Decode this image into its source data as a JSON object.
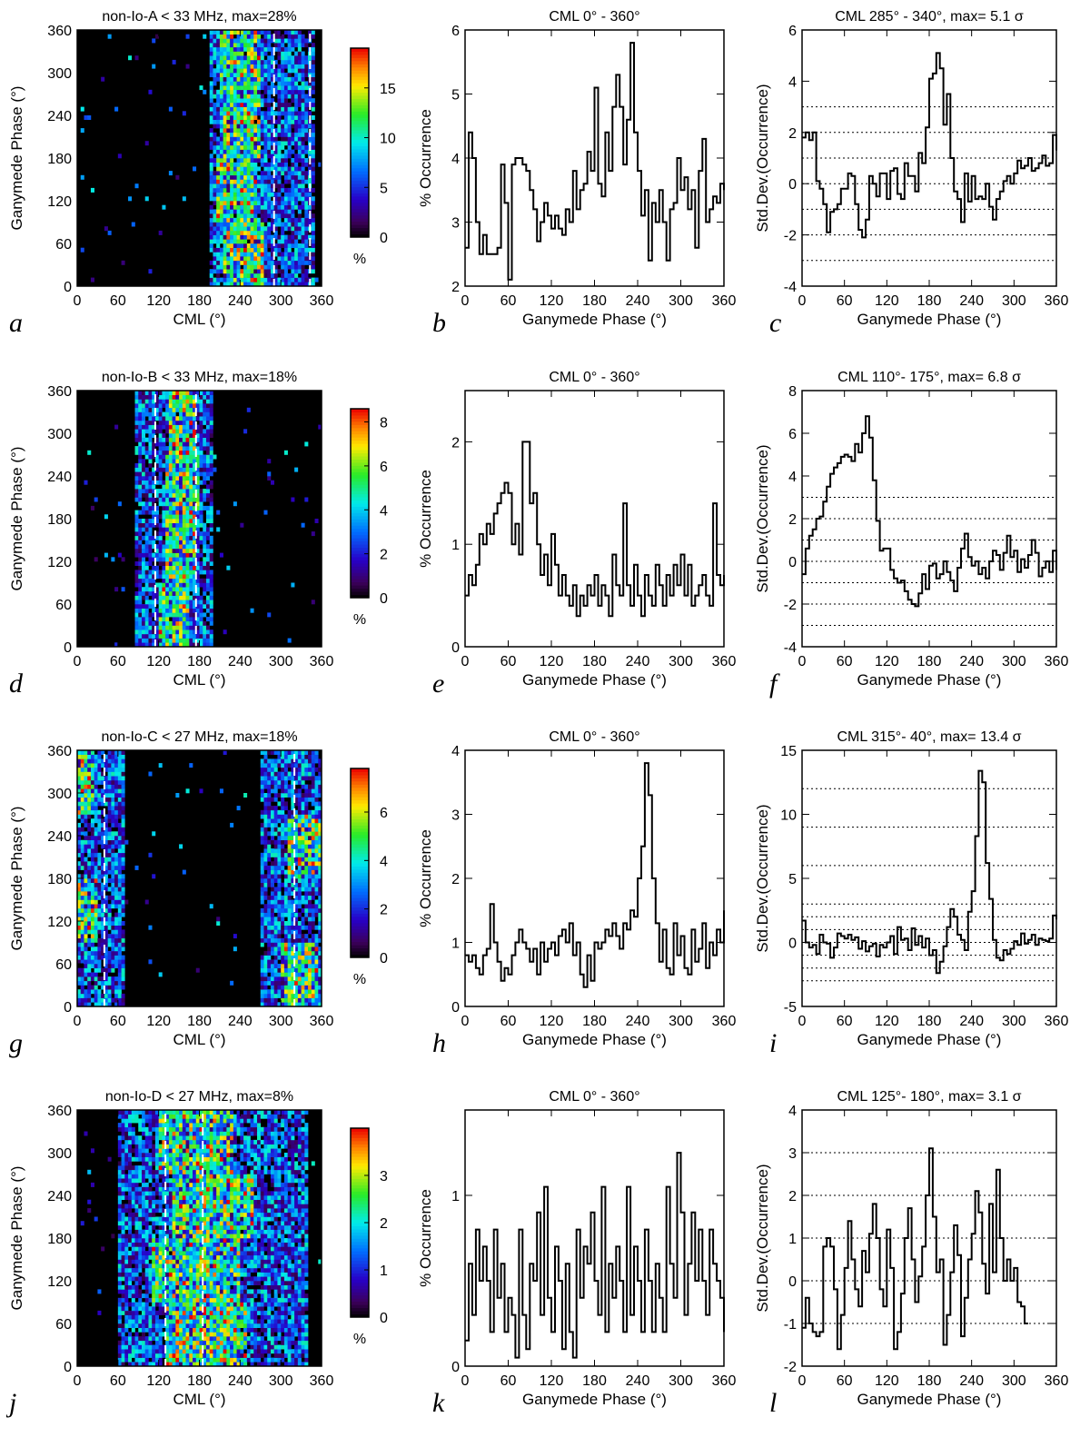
{
  "figure": {
    "rows": [
      {
        "heatmap": {
          "letter": "a",
          "title": "non-Io-A < 33 MHz, max=28%",
          "cbar_ticks": [
            "0",
            "5",
            "10",
            "15"
          ],
          "cbar_max": 19,
          "cbar_unit": "%",
          "band": [
            195,
            352
          ],
          "hot": [
            [
              215,
              275
            ],
            [
              205,
              265
            ],
            [
              215,
              270
            ],
            [
              210,
              270
            ]
          ],
          "dashed_cml": [
            290,
            343
          ]
        },
        "profile": {
          "letter": "b",
          "title": "CML 0° - 360°",
          "ylim": [
            2,
            6
          ],
          "yticks": [
            "2",
            "3",
            "4",
            "5",
            "6"
          ]
        },
        "stddev": {
          "letter": "c",
          "title": "CML 285° - 340°, max= 5.1 σ",
          "ylim": [
            -4,
            6
          ],
          "yticks": [
            "-4",
            "-2",
            "0",
            "2",
            "4",
            "6"
          ],
          "dotted": [
            -3,
            -2,
            -1,
            0,
            1,
            2,
            3
          ]
        }
      },
      {
        "heatmap": {
          "letter": "d",
          "title": "non-Io-B < 33 MHz, max=18%",
          "cbar_ticks": [
            "0",
            "2",
            "4",
            "6",
            "8"
          ],
          "cbar_max": 8.6,
          "cbar_unit": "%",
          "band": [
            85,
            200
          ],
          "hot": [
            [
              120,
              165
            ],
            [
              130,
              175
            ],
            [
              130,
              180
            ],
            [
              135,
              175
            ]
          ],
          "dashed_cml": [
            115,
            175
          ]
        },
        "profile": {
          "letter": "e",
          "title": "CML 0° - 360°",
          "ylim": [
            0,
            2.5
          ],
          "yticks": [
            "0",
            "1",
            "2"
          ]
        },
        "stddev": {
          "letter": "f",
          "title": "CML 110°- 175°, max= 6.8 σ",
          "ylim": [
            -4,
            8
          ],
          "yticks": [
            "-4",
            "-2",
            "0",
            "2",
            "4",
            "6",
            "8"
          ],
          "dotted": [
            -3,
            -2,
            -1,
            0,
            1,
            2,
            3
          ]
        }
      },
      {
        "heatmap": {
          "letter": "g",
          "title": "non-Io-C < 27 MHz, max=18%",
          "cbar_ticks": [
            "0",
            "2",
            "4",
            "6"
          ],
          "cbar_max": 7.8,
          "cbar_unit": "%",
          "band": [
            270,
            360
          ],
          "band2": [
            0,
            70
          ],
          "hot": [
            [
              300,
              355
            ],
            [
              0,
              30
            ],
            [
              310,
              360
            ],
            [
              0,
              25
            ]
          ],
          "dashed_cml": [
            40,
            320
          ]
        },
        "profile": {
          "letter": "h",
          "title": "CML 0° - 360°",
          "ylim": [
            0,
            4
          ],
          "yticks": [
            "0",
            "1",
            "2",
            "3",
            "4"
          ]
        },
        "stddev": {
          "letter": "i",
          "title": "CML 315°- 40°, max= 13.4 σ",
          "ylim": [
            -5,
            15
          ],
          "yticks": [
            "-5",
            "0",
            "5",
            "10",
            "15"
          ],
          "dotted": [
            -3,
            -2,
            -1,
            0,
            1,
            2,
            3,
            6,
            9,
            12
          ]
        }
      },
      {
        "heatmap": {
          "letter": "j",
          "title": "non-Io-D < 27 MHz, max=8%",
          "cbar_ticks": [
            "0",
            "1",
            "2",
            "3"
          ],
          "cbar_max": 4.0,
          "cbar_unit": "%",
          "band": [
            60,
            340
          ],
          "hot": [
            [
              130,
              250
            ],
            [
              110,
              240
            ],
            [
              140,
              260
            ],
            [
              120,
              230
            ]
          ],
          "dashed_cml": [
            130,
            185
          ]
        },
        "profile": {
          "letter": "k",
          "title": "CML 0° - 360°",
          "ylim": [
            0,
            1.5
          ],
          "yticks": [
            "0",
            "1"
          ]
        },
        "stddev": {
          "letter": "l",
          "title": "CML 125°- 180°, max= 3.1 σ",
          "ylim": [
            -2,
            4
          ],
          "yticks": [
            "-2",
            "-1",
            "0",
            "1",
            "2",
            "3",
            "4"
          ],
          "dotted": [
            -1,
            0,
            1,
            2,
            3
          ]
        }
      }
    ],
    "common": {
      "x_ticks": [
        "0",
        "60",
        "120",
        "180",
        "240",
        "300",
        "360"
      ],
      "heatmap_xlabel": "CML (°)",
      "heatmap_ylabel": "Ganymede Phase (°)",
      "profile_xlabel": "Ganymede Phase (°)",
      "profile_ylabel": "% Occurrence",
      "stddev_ylabel": "Std.Dev.(Occurrence)"
    }
  },
  "chart_data": [
    {
      "type": "heatmap",
      "panel": "a",
      "title": "non-Io-A < 33 MHz, max=28%",
      "xlabel": "CML (°)",
      "ylabel": "Ganymede Phase (°)",
      "xlim": [
        0,
        360
      ],
      "ylim": [
        0,
        360
      ],
      "colorbar_max": 19,
      "dashed_lines_cml": [
        290,
        343
      ]
    },
    {
      "type": "line",
      "panel": "b",
      "title": "CML 0° - 360°",
      "xlabel": "Ganymede Phase (°)",
      "ylabel": "% Occurrence",
      "xlim": [
        0,
        360
      ],
      "ylim": [
        2,
        6
      ],
      "x_start": 0,
      "x_step": 5,
      "values": [
        2.6,
        4.4,
        4.0,
        3.0,
        2.5,
        2.8,
        2.5,
        2.5,
        2.5,
        2.6,
        3.9,
        3.3,
        2.1,
        3.9,
        4.0,
        4.0,
        3.9,
        3.8,
        3.5,
        3.2,
        2.7,
        3.0,
        3.3,
        3.1,
        2.9,
        3.1,
        2.9,
        2.8,
        3.2,
        3.0,
        3.8,
        3.2,
        3.5,
        3.6,
        4.1,
        3.8,
        5.1,
        3.6,
        3.4,
        4.4,
        3.8,
        4.8,
        5.3,
        4.8,
        3.9,
        4.6,
        5.8,
        4.4,
        3.8,
        3.1,
        3.5,
        2.4,
        3.3,
        3.0,
        3.5,
        3.0,
        2.4,
        3.2,
        3.3,
        4.0,
        3.5,
        3.7,
        3.2,
        3.5,
        2.6,
        3.8,
        4.3,
        3.0,
        3.2,
        3.4,
        3.3,
        3.6,
        3.5
      ]
    },
    {
      "type": "line",
      "panel": "c",
      "title": "CML 285° - 340°, max= 5.1 σ",
      "xlabel": "Ganymede Phase (°)",
      "ylabel": "Std.Dev.(Occurrence)",
      "xlim": [
        0,
        360
      ],
      "ylim": [
        -4,
        6
      ],
      "x_start": 0,
      "x_step": 5,
      "values": [
        1.8,
        2.0,
        1.7,
        2.0,
        0.1,
        -0.2,
        -0.8,
        -1.9,
        -1.1,
        -1.0,
        -0.8,
        -0.2,
        -0.2,
        0.4,
        0.3,
        -0.8,
        -1.8,
        -2.1,
        -1.4,
        0.3,
        0.0,
        -0.5,
        0.4,
        0.4,
        -0.6,
        0.5,
        0.6,
        -0.4,
        -0.6,
        0.8,
        0.3,
        0.3,
        -0.3,
        1.2,
        0.8,
        2.2,
        4.1,
        4.3,
        5.1,
        4.5,
        2.3,
        3.5,
        1.0,
        -0.3,
        -0.6,
        -1.5,
        0.4,
        -0.7,
        0.3,
        -0.6,
        -0.5,
        -0.6,
        0.0,
        -0.9,
        -1.4,
        -0.6,
        -0.3,
        0.1,
        0.3,
        0.0,
        0.4,
        0.9,
        0.6,
        0.7,
        1.0,
        0.5,
        0.6,
        0.8,
        1.1,
        0.7,
        0.8,
        1.9,
        1.3
      ]
    },
    {
      "type": "heatmap",
      "panel": "d",
      "title": "non-Io-B < 33 MHz, max=18%",
      "xlabel": "CML (°)",
      "ylabel": "Ganymede Phase (°)",
      "xlim": [
        0,
        360
      ],
      "ylim": [
        0,
        360
      ],
      "colorbar_max": 8.6,
      "dashed_lines_cml": [
        115,
        175
      ]
    },
    {
      "type": "line",
      "panel": "e",
      "title": "CML 0° - 360°",
      "xlabel": "Ganymede Phase (°)",
      "ylabel": "% Occurrence",
      "xlim": [
        0,
        360
      ],
      "ylim": [
        0,
        2.5
      ],
      "x_start": 0,
      "x_step": 5,
      "values": [
        0.5,
        0.7,
        0.6,
        0.8,
        1.1,
        1.0,
        1.2,
        1.1,
        1.3,
        1.4,
        1.5,
        1.6,
        1.5,
        1.0,
        1.2,
        0.9,
        2.0,
        2.0,
        1.4,
        1.5,
        1.0,
        0.7,
        0.9,
        0.6,
        1.1,
        0.8,
        0.5,
        0.7,
        0.5,
        0.4,
        0.6,
        0.3,
        0.5,
        0.4,
        0.6,
        0.5,
        0.7,
        0.4,
        0.6,
        0.5,
        0.3,
        0.9,
        0.6,
        0.5,
        1.4,
        0.6,
        0.4,
        0.8,
        0.5,
        0.3,
        0.7,
        0.5,
        0.4,
        0.8,
        0.6,
        0.4,
        0.7,
        0.5,
        0.8,
        0.6,
        0.9,
        0.5,
        0.8,
        0.4,
        0.5,
        0.6,
        0.7,
        0.5,
        0.4,
        1.4,
        0.7,
        0.6,
        0.7
      ]
    },
    {
      "type": "line",
      "panel": "f",
      "title": "CML 110°- 175°, max= 6.8 σ",
      "xlabel": "Ganymede Phase (°)",
      "ylabel": "Std.Dev.(Occurrence)",
      "xlim": [
        0,
        360
      ],
      "ylim": [
        -4,
        8
      ],
      "x_start": 0,
      "x_step": 5,
      "values": [
        -0.6,
        0.6,
        1.2,
        1.5,
        2.0,
        2.1,
        2.8,
        3.5,
        4.1,
        4.4,
        4.6,
        4.9,
        5.0,
        4.9,
        4.7,
        5.5,
        5.1,
        6.0,
        6.8,
        5.8,
        3.8,
        1.9,
        0.5,
        0.6,
        0.6,
        -0.4,
        -0.8,
        -1.0,
        -0.9,
        -1.4,
        -1.8,
        -2.0,
        -2.1,
        -1.5,
        -0.6,
        -1.3,
        -0.2,
        -0.1,
        -0.8,
        -0.6,
        0.0,
        -0.5,
        -0.9,
        -1.4,
        -0.3,
        0.6,
        1.3,
        0.2,
        -0.2,
        0.0,
        -0.6,
        -0.3,
        -0.8,
        0.0,
        0.5,
        0.3,
        -0.4,
        0.4,
        1.2,
        0.2,
        0.5,
        -0.5,
        0.1,
        -0.3,
        0.3,
        1.0,
        0.4,
        -0.7,
        -0.3,
        0.0,
        -0.5,
        0.5,
        -0.4
      ]
    },
    {
      "type": "heatmap",
      "panel": "g",
      "title": "non-Io-C < 27 MHz, max=18%",
      "xlabel": "CML (°)",
      "ylabel": "Ganymede Phase (°)",
      "xlim": [
        0,
        360
      ],
      "ylim": [
        0,
        360
      ],
      "colorbar_max": 7.8,
      "dashed_lines_cml": [
        40,
        320
      ]
    },
    {
      "type": "line",
      "panel": "h",
      "title": "CML 0° - 360°",
      "xlabel": "Ganymede Phase (°)",
      "ylabel": "% Occurrence",
      "xlim": [
        0,
        360
      ],
      "ylim": [
        0,
        4
      ],
      "x_start": 0,
      "x_step": 5,
      "values": [
        0.8,
        0.7,
        0.8,
        0.6,
        0.5,
        0.8,
        0.9,
        1.6,
        1.0,
        0.7,
        0.4,
        0.6,
        0.5,
        0.8,
        1.0,
        1.2,
        1.0,
        0.9,
        0.7,
        0.9,
        0.5,
        1.0,
        0.7,
        0.9,
        1.0,
        0.8,
        1.1,
        1.2,
        1.0,
        1.3,
        0.8,
        1.0,
        0.5,
        0.3,
        0.8,
        0.4,
        1.0,
        0.9,
        1.0,
        1.2,
        1.1,
        1.3,
        1.1,
        0.9,
        1.3,
        1.2,
        1.5,
        1.4,
        2.0,
        2.5,
        3.8,
        3.3,
        2.0,
        1.3,
        0.7,
        1.2,
        0.6,
        0.5,
        1.3,
        0.8,
        1.1,
        0.6,
        0.5,
        1.2,
        0.7,
        0.9,
        1.3,
        0.6,
        1.0,
        0.8,
        1.2,
        1.0,
        1.5
      ]
    },
    {
      "type": "line",
      "panel": "i",
      "title": "CML 315°- 40°, max= 13.4 σ",
      "xlabel": "Ganymede Phase (°)",
      "ylabel": "Std.Dev.(Occurrence)",
      "xlim": [
        0,
        360
      ],
      "ylim": [
        -5,
        15
      ],
      "x_start": 0,
      "x_step": 5,
      "values": [
        1.7,
        0.0,
        -0.4,
        -0.2,
        -0.9,
        0.6,
        0.0,
        -0.1,
        -1.2,
        -0.4,
        0.7,
        0.5,
        0.3,
        0.6,
        0.2,
        0.4,
        -0.5,
        0.1,
        -0.7,
        -0.3,
        -0.1,
        -1.1,
        -0.2,
        -0.4,
        0.0,
        0.5,
        -0.9,
        1.2,
        0.2,
        0.3,
        -0.6,
        1.1,
        -0.2,
        0.5,
        -0.4,
        0.3,
        -1.0,
        -0.6,
        -2.4,
        -1.5,
        -0.3,
        1.2,
        2.6,
        2.0,
        0.6,
        0.2,
        -0.6,
        2.4,
        4.0,
        8.3,
        13.4,
        12.5,
        6.2,
        3.4,
        0.2,
        -1.2,
        -1.4,
        -0.6,
        -0.9,
        -0.5,
        0.1,
        -0.2,
        0.7,
        -0.1,
        0.2,
        0.6,
        -0.2,
        0.3,
        0.2,
        0.1,
        0.3,
        2.1,
        1.8
      ]
    },
    {
      "type": "heatmap",
      "panel": "j",
      "title": "non-Io-D < 27 MHz, max=8%",
      "xlabel": "CML (°)",
      "ylabel": "Ganymede Phase (°)",
      "xlim": [
        0,
        360
      ],
      "ylim": [
        0,
        360
      ],
      "colorbar_max": 4.0,
      "dashed_lines_cml": [
        130,
        185
      ]
    },
    {
      "type": "line",
      "panel": "k",
      "title": "CML 0° - 360°",
      "xlabel": "Ganymede Phase (°)",
      "ylabel": "% Occurrence",
      "xlim": [
        0,
        360
      ],
      "ylim": [
        0,
        1.5
      ],
      "x_start": 0,
      "x_step": 5,
      "values": [
        0.15,
        0.6,
        0.3,
        0.8,
        0.5,
        0.7,
        0.5,
        0.2,
        0.8,
        0.4,
        0.6,
        0.2,
        0.4,
        0.3,
        0.05,
        0.8,
        0.3,
        0.1,
        0.6,
        0.5,
        0.9,
        0.3,
        1.05,
        0.4,
        0.2,
        0.7,
        0.5,
        0.1,
        0.6,
        0.2,
        0.05,
        0.8,
        0.4,
        0.7,
        0.6,
        0.9,
        0.5,
        0.3,
        1.05,
        0.2,
        0.6,
        0.4,
        0.7,
        0.5,
        0.2,
        1.05,
        0.3,
        0.7,
        0.5,
        0.2,
        0.8,
        0.5,
        0.2,
        0.6,
        0.4,
        0.2,
        1.05,
        0.6,
        0.4,
        1.25,
        0.9,
        0.3,
        0.6,
        0.9,
        0.5,
        0.8,
        0.5,
        0.3,
        0.8,
        0.6,
        0.5,
        0.4,
        0.2
      ]
    },
    {
      "type": "line",
      "panel": "l",
      "title": "CML 125°- 180°, max= 3.1 σ",
      "xlabel": "Ganymede Phase (°)",
      "ylabel": "Std.Dev.(Occurrence)",
      "xlim": [
        0,
        360
      ],
      "ylim": [
        -2,
        4
      ],
      "x_start": 0,
      "x_step": 5,
      "values": [
        -1.1,
        -0.4,
        -1.0,
        -1.2,
        -1.3,
        -1.2,
        0.8,
        1.0,
        0.8,
        -0.2,
        -1.6,
        -0.8,
        0.3,
        1.4,
        0.5,
        -0.2,
        -0.6,
        0.7,
        0.2,
        1.1,
        1.8,
        1.0,
        -0.2,
        -0.6,
        1.2,
        0.3,
        -1.6,
        -1.2,
        -0.3,
        1.0,
        1.7,
        0.5,
        -0.5,
        0.1,
        0.8,
        2.0,
        3.1,
        1.5,
        0.2,
        0.5,
        -1.5,
        -0.8,
        0.2,
        1.3,
        0.6,
        -1.3,
        -0.4,
        0.5,
        1.1,
        2.1,
        1.6,
        0.4,
        -0.3,
        1.8,
        0.2,
        2.6,
        1.0,
        0.0,
        0.5,
        0.0,
        0.3,
        -0.5,
        -0.6,
        -1.0
      ]
    }
  ]
}
